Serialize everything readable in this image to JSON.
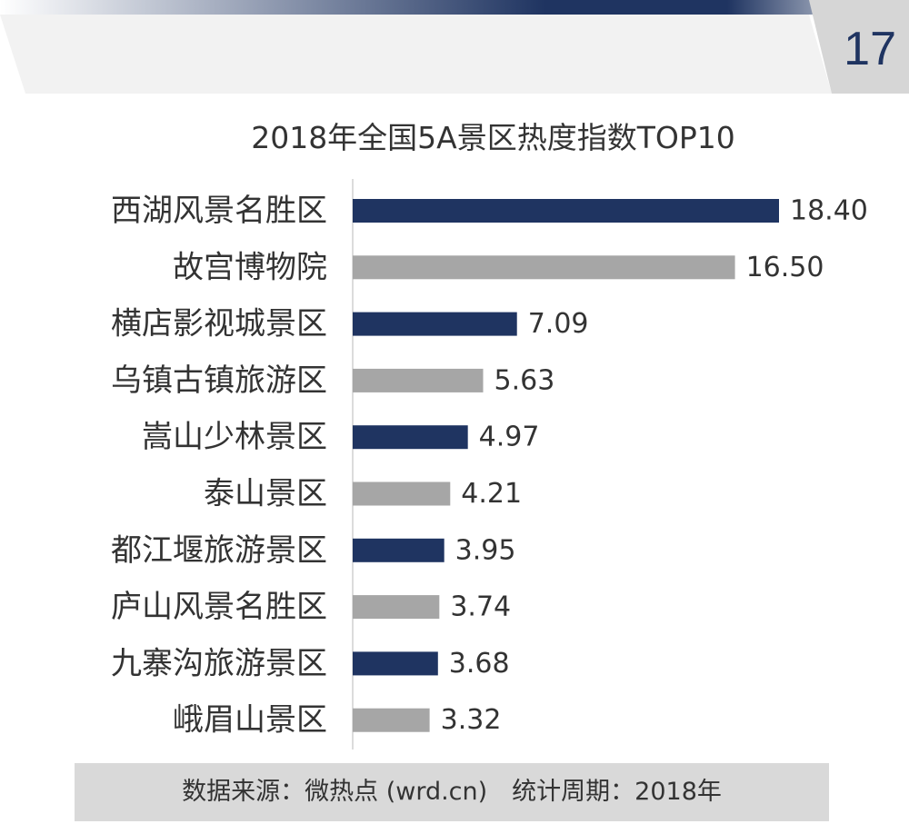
{
  "header": {
    "page_number": "17",
    "band_colors": [
      "#ffffff",
      "#1f3461",
      "#f2f2f2",
      "#d6d6d6"
    ]
  },
  "footer": {
    "text": "数据来源：微热点 (wrd.cn)　统计周期：2018年"
  },
  "colors": {
    "primary": "#1f3461",
    "secondary": "#a6a6a6",
    "text": "#333333"
  },
  "chart_data": {
    "type": "bar",
    "orientation": "horizontal",
    "title": "2018年全国5A景区热度指数TOP10",
    "categories": [
      "西湖风景名胜区",
      "故宫博物院",
      "横店影视城景区",
      "乌镇古镇旅游区",
      "嵩山少林景区",
      "泰山景区",
      "都江堰旅游景区",
      "庐山风景名胜区",
      "九寨沟旅游景区",
      "峨眉山景区"
    ],
    "values": [
      18.4,
      16.5,
      7.09,
      5.63,
      4.97,
      4.21,
      3.95,
      3.74,
      3.68,
      3.32
    ],
    "value_labels": [
      "18.40",
      "16.50",
      "7.09",
      "5.63",
      "4.97",
      "4.21",
      "3.95",
      "3.74",
      "3.68",
      "3.32"
    ],
    "bar_colors": [
      "#1f3461",
      "#a6a6a6",
      "#1f3461",
      "#a6a6a6",
      "#1f3461",
      "#a6a6a6",
      "#1f3461",
      "#a6a6a6",
      "#1f3461",
      "#a6a6a6"
    ],
    "xlim": [
      0,
      18.4
    ],
    "grid": false,
    "legend": "none"
  }
}
